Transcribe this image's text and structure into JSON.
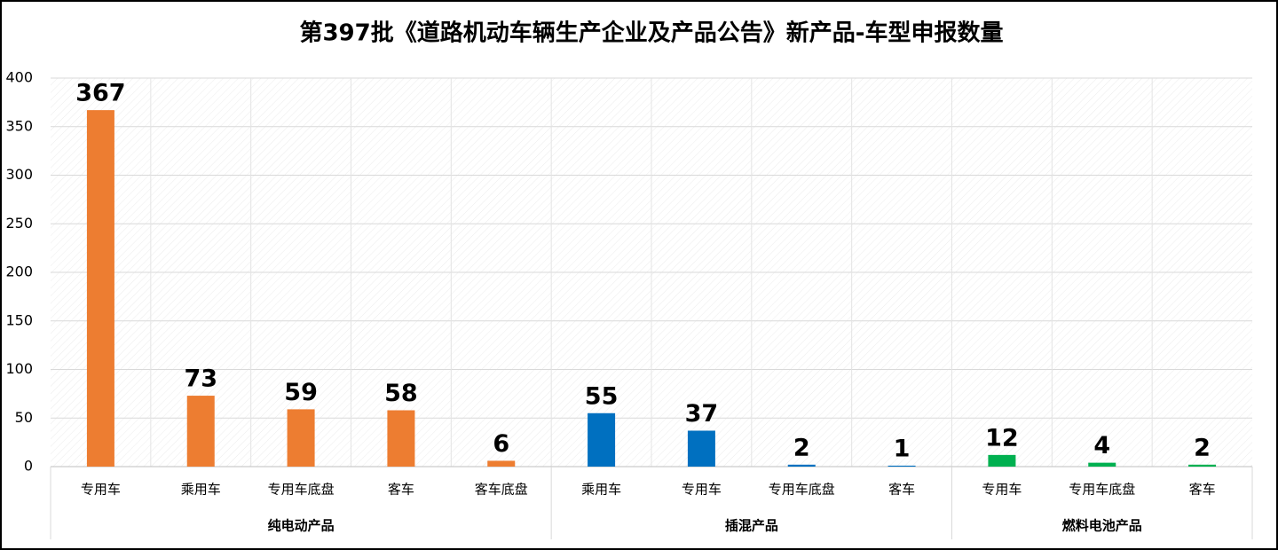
{
  "chart_data": {
    "type": "bar",
    "title": "第397批《道路机动车辆生产企业及产品公告》新产品-车型申报数量",
    "groups": [
      {
        "name": "纯电动产品",
        "color": "#ED7D31",
        "categories": [
          "专用车",
          "乘用车",
          "专用车底盘",
          "客车",
          "客车底盘"
        ],
        "values": [
          367,
          73,
          59,
          58,
          6
        ]
      },
      {
        "name": "插混产品",
        "color": "#0070C0",
        "categories": [
          "乘用车",
          "专用车",
          "专用车底盘",
          "客车"
        ],
        "values": [
          55,
          37,
          2,
          1
        ]
      },
      {
        "name": "燃料电池产品",
        "color": "#00B050",
        "categories": [
          "专用车",
          "专用车底盘",
          "客车"
        ],
        "values": [
          12,
          4,
          2
        ]
      }
    ],
    "ylim": [
      0,
      400
    ],
    "yticks": [
      0,
      50,
      100,
      150,
      200,
      250,
      300,
      350,
      400
    ],
    "grid": true
  }
}
